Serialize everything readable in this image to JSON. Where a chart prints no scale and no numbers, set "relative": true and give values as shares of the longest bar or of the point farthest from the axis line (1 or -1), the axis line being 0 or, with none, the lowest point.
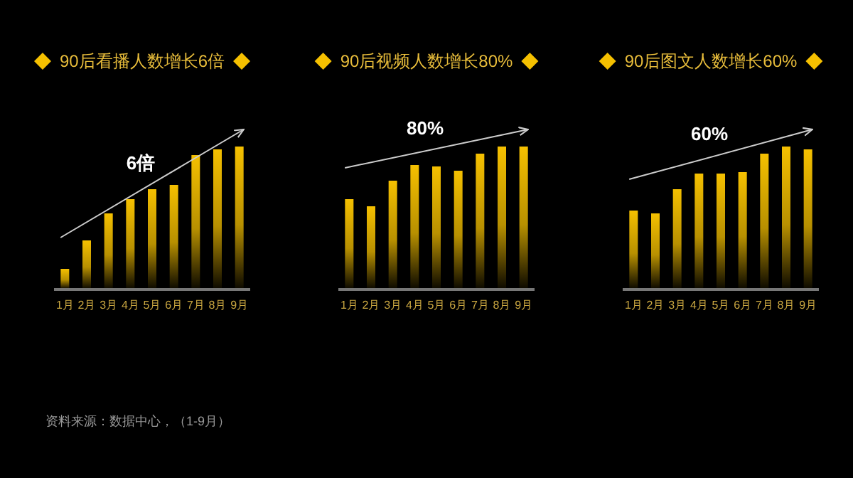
{
  "chart_data": [
    {
      "type": "bar",
      "title": "90后看播人数增长6倍",
      "categories": [
        "1月",
        "2月",
        "3月",
        "4月",
        "5月",
        "6月",
        "7月",
        "8月",
        "9月"
      ],
      "values": [
        0.14,
        0.34,
        0.53,
        0.63,
        0.7,
        0.73,
        0.94,
        0.98,
        1
      ],
      "color": "#f5c000",
      "relative": true,
      "annotations": [
        "6倍",
        "资料来源：数据中心，（1-9月）"
      ]
    },
    {
      "type": "bar",
      "title": "90后视频人数增长80%",
      "categories": [
        "1月",
        "2月",
        "3月",
        "4月",
        "5月",
        "6月",
        "7月",
        "8月",
        "9月"
      ],
      "values": [
        0.63,
        0.58,
        0.76,
        0.87,
        0.86,
        0.83,
        0.95,
        1,
        1
      ],
      "color": "#f5c000",
      "relative": true,
      "annotations": [
        "80%"
      ]
    },
    {
      "type": "bar",
      "title": "90后图文人数增长60%",
      "categories": [
        "1月",
        "2月",
        "3月",
        "4月",
        "5月",
        "6月",
        "7月",
        "8月",
        "9月"
      ],
      "values": [
        0.55,
        0.53,
        0.7,
        0.81,
        0.81,
        0.82,
        0.95,
        1,
        0.98
      ],
      "color": "#f5c000",
      "relative": true,
      "annotations": [
        "60%"
      ]
    }
  ]
}
